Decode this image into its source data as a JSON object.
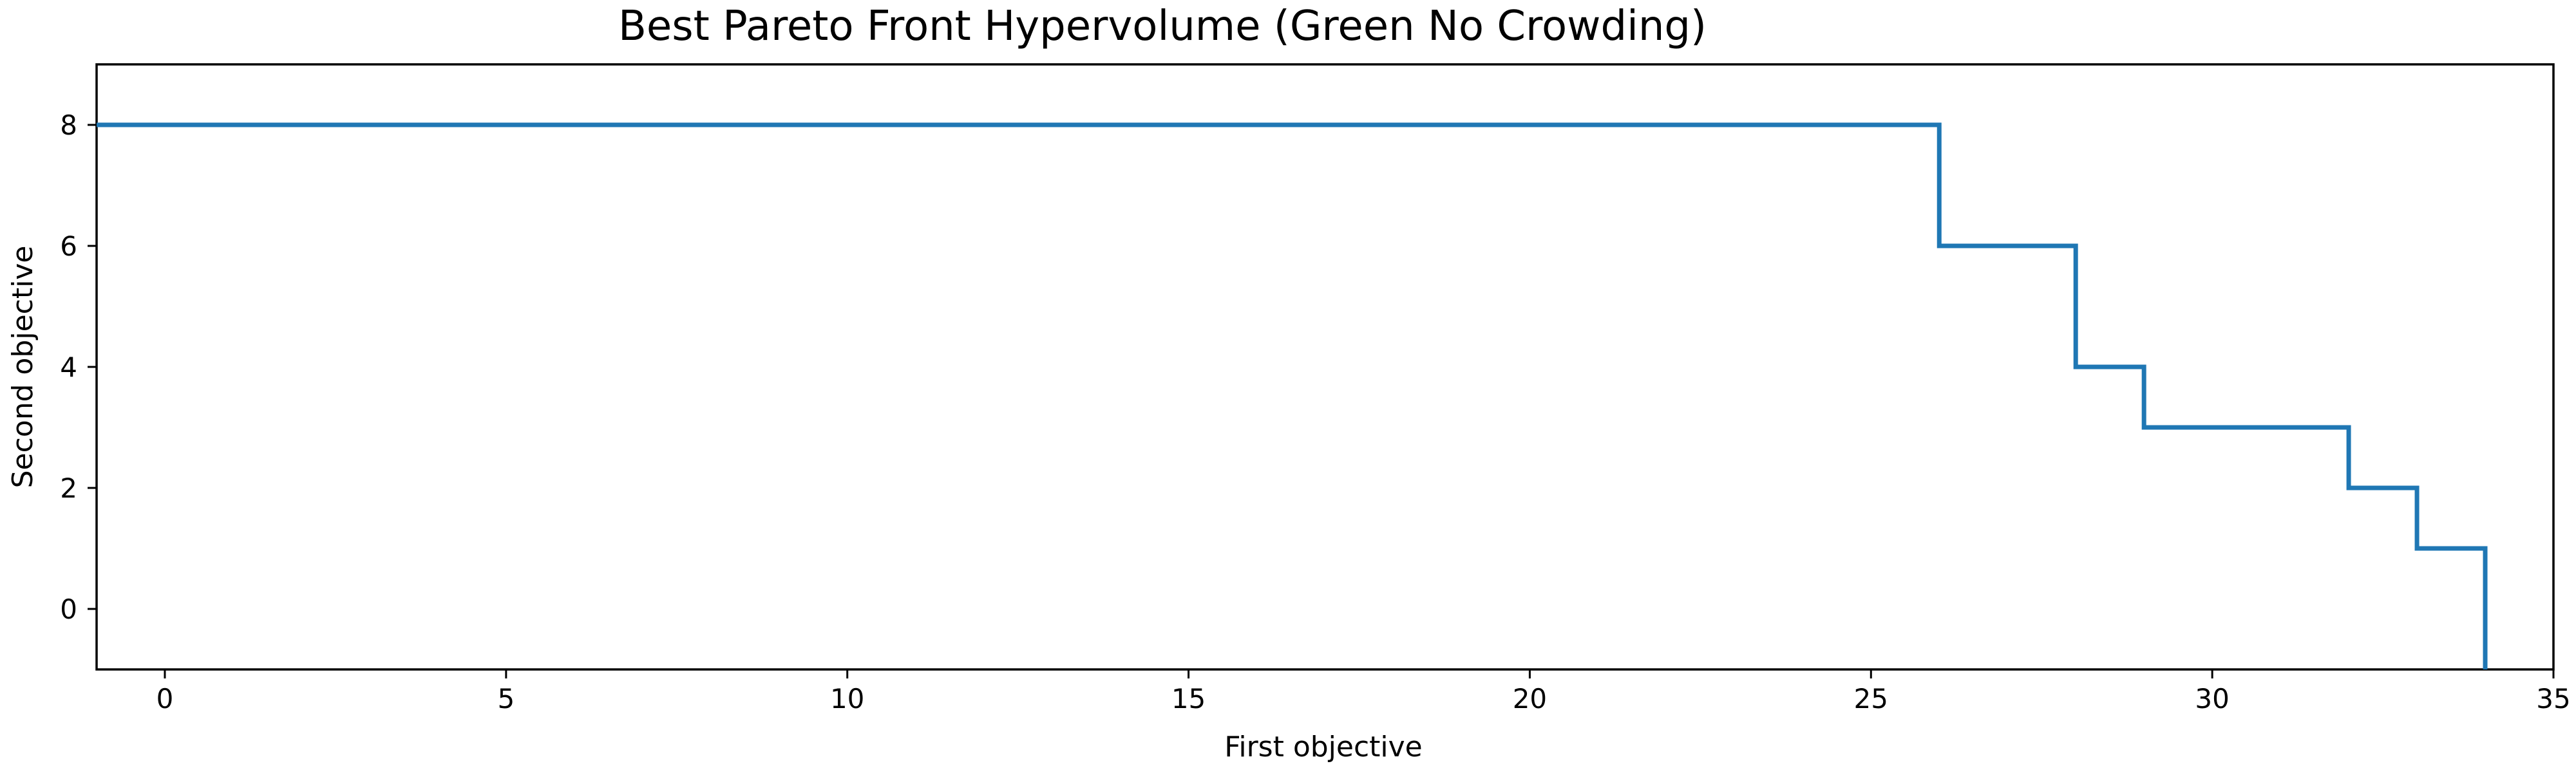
{
  "chart_data": {
    "type": "line",
    "title": "Best Pareto Front Hypervolume (Green No Crowding)",
    "xlabel": "First objective",
    "ylabel": "Second objective",
    "xlim": [
      -1,
      35
    ],
    "ylim": [
      -1,
      9
    ],
    "xticks": [
      0,
      5,
      10,
      15,
      20,
      25,
      30,
      35
    ],
    "yticks": [
      0,
      2,
      4,
      6,
      8
    ],
    "grid": false,
    "legend": "none",
    "step_where": "post",
    "series": [
      {
        "color": "#1f77b4",
        "x": [
          -1,
          26,
          28,
          29,
          32,
          33,
          34
        ],
        "y": [
          8,
          6,
          4,
          3,
          2,
          1,
          -1
        ]
      }
    ]
  }
}
